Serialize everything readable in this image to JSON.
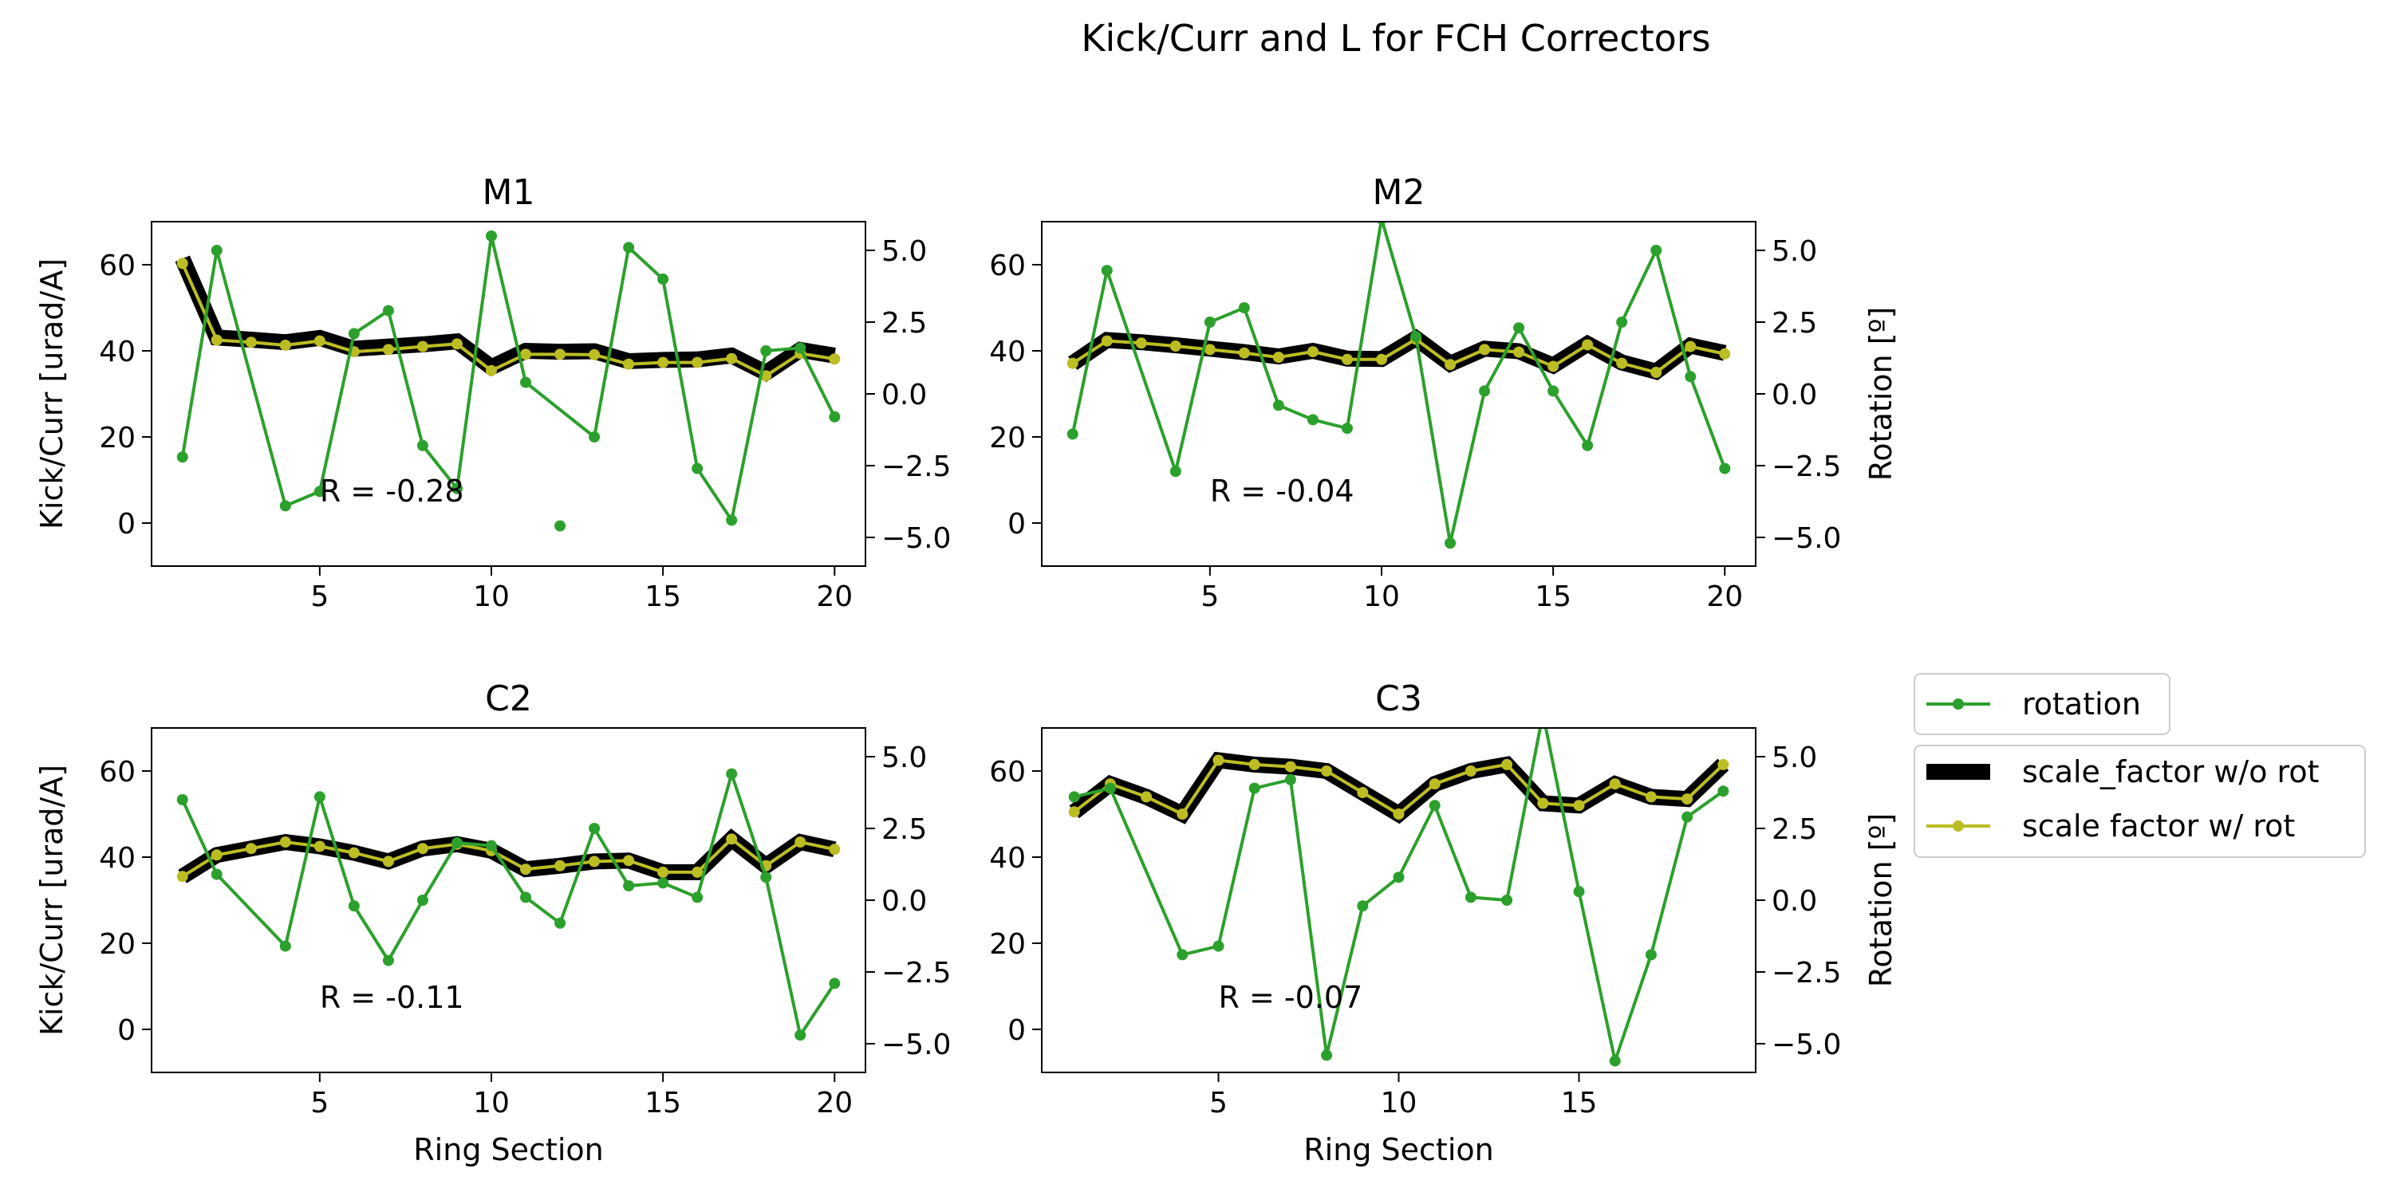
{
  "figure_title": "Kick/Curr and L for FCH Correctors",
  "legend": {
    "placement": "right",
    "rotation_label": "rotation",
    "wo_rot_label": "scale_factor w/o rot",
    "w_rot_label": "scale factor w/ rot"
  },
  "colors": {
    "rotation": "#2ca02c",
    "scale_wo_rot": "#000000",
    "scale_w_rot": "#bcbd22"
  },
  "chart_data": [
    {
      "type": "line",
      "title": "M1",
      "xlabel": "",
      "ylabel": "Kick/Curr [urad/A]",
      "ylabel_right": "",
      "xlim": [
        0.1,
        20.9
      ],
      "ylim": [
        -10,
        70
      ],
      "ylim_right": [
        -6,
        6
      ],
      "xticks": [
        5,
        10,
        15,
        20
      ],
      "yticks": [
        0,
        20,
        40,
        60
      ],
      "yticks_right": [
        -5.0,
        -2.5,
        0.0,
        2.5,
        5.0
      ],
      "annotation": {
        "text": "R = -0.28",
        "x": 5,
        "y": 5
      },
      "x": [
        1,
        2,
        3,
        4,
        5,
        6,
        7,
        8,
        9,
        10,
        11,
        12,
        13,
        14,
        15,
        16,
        17,
        18,
        19,
        20
      ],
      "scale_wo_rot": [
        61.4,
        43.1,
        42.6,
        42.0,
        43.0,
        40.5,
        41.0,
        41.5,
        42.2,
        36.2,
        40.0,
        39.8,
        39.9,
        37.6,
        37.9,
        38.0,
        38.9,
        34.9,
        40.2,
        38.9
      ],
      "scale_w_rot": [
        60.3,
        42.5,
        42.0,
        41.3,
        42.3,
        39.8,
        40.3,
        41.0,
        41.6,
        35.4,
        39.2,
        39.2,
        39.1,
        36.9,
        37.3,
        37.3,
        38.2,
        34.2,
        39.4,
        38.1
      ],
      "rotation_x": [
        1,
        2,
        4,
        5,
        6,
        7,
        8,
        9,
        10,
        11,
        13,
        14,
        15,
        16,
        17,
        18,
        19,
        20
      ],
      "rotation": [
        -2.2,
        5.0,
        -3.9,
        -3.4,
        2.1,
        2.9,
        -1.8,
        -3.3,
        5.5,
        0.4,
        -1.5,
        5.1,
        4.0,
        -2.6,
        -4.4,
        1.5,
        1.6,
        -0.8
      ],
      "extra_rotation": {
        "x": 12,
        "y": -4.6
      }
    },
    {
      "type": "line",
      "title": "M2",
      "xlabel": "",
      "ylabel": "",
      "ylabel_right": "Rotation [º]",
      "xlim": [
        0.1,
        20.9
      ],
      "ylim": [
        -10,
        70
      ],
      "ylim_right": [
        -6,
        6
      ],
      "xticks": [
        5,
        10,
        15,
        20
      ],
      "yticks": [
        0,
        20,
        40,
        60
      ],
      "yticks_right": [
        -5.0,
        -2.5,
        0.0,
        2.5,
        5.0
      ],
      "annotation": {
        "text": "R = -0.04",
        "x": 5,
        "y": 5
      },
      "x": [
        1,
        2,
        3,
        4,
        5,
        6,
        7,
        8,
        9,
        10,
        11,
        12,
        13,
        14,
        15,
        16,
        17,
        18,
        19,
        20
      ],
      "scale_wo_rot": [
        37.1,
        42.5,
        42.0,
        41.3,
        40.5,
        39.7,
        38.7,
        40.0,
        38.2,
        38.1,
        42.9,
        37.0,
        40.5,
        39.9,
        36.6,
        41.6,
        37.3,
        35.2,
        41.2,
        39.5
      ],
      "scale_w_rot": [
        37.1,
        42.3,
        41.8,
        41.1,
        40.3,
        39.5,
        38.5,
        39.8,
        38.0,
        38.0,
        42.7,
        36.8,
        40.3,
        39.7,
        36.4,
        41.4,
        37.1,
        35.0,
        41.0,
        39.3
      ],
      "rotation_x": [
        1,
        2,
        4,
        5,
        6,
        7,
        8,
        9,
        10,
        11,
        12,
        13,
        14,
        15,
        16,
        17,
        18,
        19,
        20
      ],
      "rotation": [
        -1.4,
        4.3,
        -2.7,
        2.5,
        3.0,
        -0.4,
        -0.9,
        -1.2,
        6.1,
        2.0,
        -5.2,
        0.1,
        2.3,
        0.1,
        -1.8,
        2.5,
        5.0,
        0.6,
        -2.6
      ]
    },
    {
      "type": "line",
      "title": "C2",
      "xlabel": "Ring Section",
      "ylabel": "Kick/Curr [urad/A]",
      "ylabel_right": "",
      "xlim": [
        0.1,
        20.9
      ],
      "ylim": [
        -10,
        70
      ],
      "ylim_right": [
        -6,
        6
      ],
      "xticks": [
        5,
        10,
        15,
        20
      ],
      "yticks": [
        0,
        20,
        40,
        60
      ],
      "yticks_right": [
        -5.0,
        -2.5,
        0.0,
        2.5,
        5.0
      ],
      "annotation": {
        "text": "R = -0.11",
        "x": 5,
        "y": 5
      },
      "x": [
        1,
        2,
        3,
        4,
        5,
        6,
        7,
        8,
        9,
        10,
        11,
        12,
        13,
        14,
        15,
        16,
        17,
        18,
        19,
        20
      ],
      "scale_wo_rot": [
        35.5,
        40.5,
        42.0,
        43.5,
        42.5,
        41.0,
        39.0,
        42.0,
        43.0,
        41.5,
        37.2,
        38.0,
        39.0,
        39.2,
        36.5,
        36.5,
        44.2,
        38.0,
        43.5,
        41.8
      ],
      "scale_w_rot": [
        35.5,
        40.5,
        42.0,
        43.5,
        42.5,
        41.0,
        39.0,
        42.0,
        43.0,
        41.5,
        37.2,
        38.0,
        39.0,
        39.2,
        36.5,
        36.5,
        44.2,
        38.0,
        43.5,
        41.8
      ],
      "rotation_x": [
        1,
        2,
        4,
        5,
        6,
        7,
        8,
        9,
        10,
        11,
        12,
        13,
        14,
        15,
        16,
        17,
        18,
        19,
        20
      ],
      "rotation": [
        3.5,
        0.9,
        -1.6,
        3.6,
        -0.2,
        -2.1,
        0.0,
        2.0,
        1.9,
        0.1,
        -0.8,
        2.5,
        0.5,
        0.6,
        0.1,
        4.4,
        0.8,
        -4.7,
        -2.9
      ]
    },
    {
      "type": "line",
      "title": "C3",
      "xlabel": "Ring Section",
      "ylabel": "",
      "ylabel_right": "Rotation [º]",
      "xlim": [
        0.1,
        19.9
      ],
      "ylim": [
        -10,
        70
      ],
      "ylim_right": [
        -6,
        6
      ],
      "xticks": [
        5,
        10,
        15
      ],
      "yticks": [
        0,
        20,
        40,
        60
      ],
      "yticks_right": [
        -5.0,
        -2.5,
        0.0,
        2.5,
        5.0
      ],
      "annotation": {
        "text": "R = -0.07",
        "x": 5,
        "y": 5
      },
      "x": [
        1,
        2,
        3,
        4,
        5,
        6,
        7,
        8,
        9,
        10,
        11,
        12,
        13,
        14,
        15,
        16,
        17,
        18,
        19
      ],
      "scale_wo_rot": [
        50.5,
        57.0,
        54.0,
        50.0,
        62.5,
        61.5,
        61.0,
        60.0,
        55.0,
        50.0,
        57.0,
        60.0,
        61.5,
        52.5,
        52.0,
        57.0,
        54.0,
        53.5,
        61.5
      ],
      "scale_w_rot": [
        50.5,
        57.0,
        54.0,
        50.0,
        62.5,
        61.5,
        61.0,
        60.0,
        55.0,
        50.0,
        57.0,
        60.0,
        61.5,
        52.5,
        52.0,
        57.0,
        54.0,
        53.5,
        61.5
      ],
      "rotation_x": [
        1,
        2,
        4,
        5,
        6,
        7,
        8,
        9,
        10,
        11,
        12,
        13,
        14,
        15,
        16,
        17,
        18,
        19
      ],
      "rotation": [
        3.6,
        3.9,
        -1.9,
        -1.6,
        3.9,
        4.2,
        -5.4,
        -0.2,
        0.8,
        3.3,
        0.1,
        0.0,
        6.5,
        0.3,
        -5.6,
        -1.9,
        2.9,
        3.8
      ]
    }
  ]
}
